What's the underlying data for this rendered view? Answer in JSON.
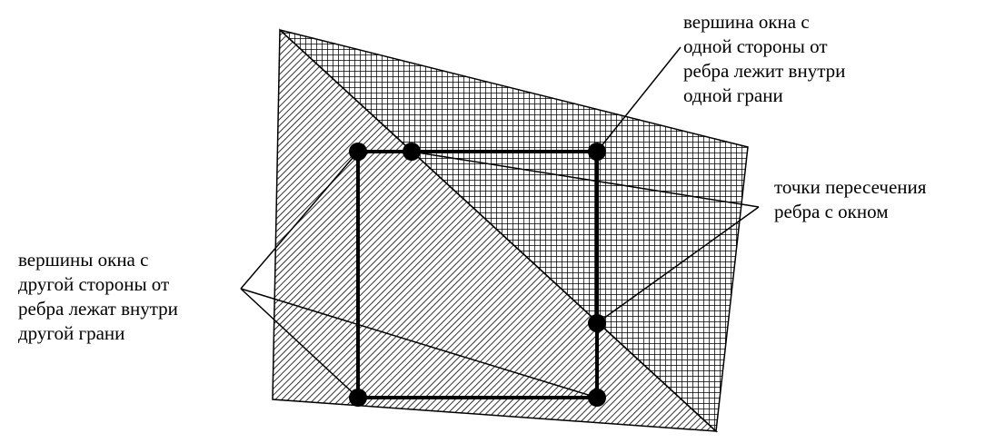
{
  "labels": {
    "window_vertex_one_side": [
      "вершина окна с",
      "одной стороны от",
      "ребра лежит внутри",
      "одной грани"
    ],
    "edge_window_intersections": [
      "точки пересечения",
      "ребра с окном"
    ],
    "window_vertices_other_side": [
      "вершины окна с",
      "другой стороны от",
      "ребра лежат внутри",
      "другой грани"
    ]
  },
  "colors": {
    "stroke": "#000000",
    "hatch": "#000000",
    "background": "#ffffff"
  },
  "patterns": {
    "left_face": "diagonal-hatch",
    "right_face": "crosshatch-grid"
  }
}
